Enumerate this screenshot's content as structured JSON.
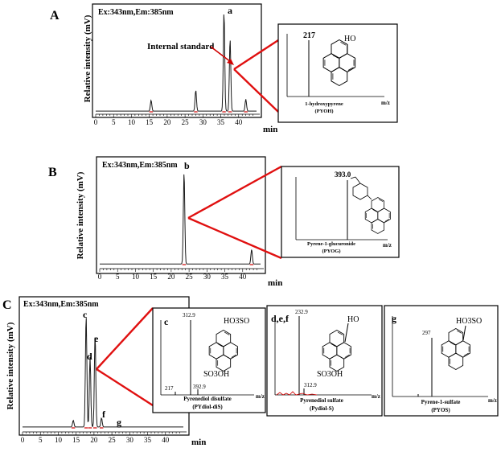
{
  "colors": {
    "trace": "#1a1a1a",
    "highlight": "#d00000",
    "zoom_line": "#e01010"
  },
  "chart_data": [
    {
      "type": "line",
      "panel": "A",
      "annotation": "Ex:343nm,Em:385nm",
      "ylabel": "Relative intensity (mV)",
      "xlabel": "min",
      "xlim": [
        0,
        45
      ],
      "ticks": [
        "0",
        "5",
        "10",
        "15",
        "20",
        "25",
        "30",
        "35",
        "40"
      ],
      "peak_label": "a",
      "callout": "Internal standard",
      "x": [
        0,
        15.5,
        28.0,
        35.9,
        37.6,
        42.0,
        44.0
      ],
      "y": [
        0.03,
        0.11,
        0.21,
        1.0,
        0.73,
        0.12,
        0.03
      ],
      "inset": {
        "mz_label": "217",
        "compound": "1-hydroxypyrene",
        "abbr": "(PYOH)",
        "substituent": "HO",
        "xlabel": "m/z"
      }
    },
    {
      "type": "line",
      "panel": "B",
      "annotation": "Ex:343nm,Em:385nm",
      "ylabel": "Relative intensity (mV)",
      "xlabel": "min",
      "xlim": [
        0,
        45
      ],
      "ticks": [
        "0",
        "5",
        "10",
        "15",
        "20",
        "25",
        "30",
        "35",
        "40"
      ],
      "peak_label": "b",
      "x": [
        0,
        23.6,
        42.5,
        44.0
      ],
      "y": [
        0.02,
        1.0,
        0.16,
        0.05
      ],
      "inset": {
        "mz_label": "393.0",
        "compound": "Pyrene-1-glucuronide",
        "abbr": "(PYOG)",
        "xlabel": "m/z"
      }
    },
    {
      "type": "line",
      "panel": "C",
      "annotation": "Ex:343nm,Em:385nm",
      "ylabel": "Relative intensity (mV)",
      "xlabel": "min",
      "xlim": [
        0,
        45
      ],
      "ticks": [
        "0",
        "5",
        "10",
        "15",
        "20",
        "25",
        "30",
        "35",
        "40"
      ],
      "peak_labels": [
        "c",
        "e",
        "d",
        "f",
        "g"
      ],
      "x": [
        0,
        10.5,
        14.2,
        17.8,
        18.9,
        20.3,
        22.1,
        26.6,
        35.8,
        44.0
      ],
      "y": [
        0.02,
        0.04,
        0.06,
        1.0,
        0.62,
        0.82,
        0.08,
        0.03,
        0.03,
        0.02
      ],
      "insets": [
        {
          "tag": "c",
          "top_mz": "312.9",
          "low_mz": "217",
          "mid_mz": "392.9",
          "top_group": "HO3SO",
          "bottom_group": "SO3OH",
          "compound": "Pyrenediol disulfate",
          "abbr": "(PYdiol-diS)",
          "xlabel": "m/z"
        },
        {
          "tag": "d,e,f",
          "top_mz": "232.9",
          "low_mz": "312.9",
          "top_group": "HO",
          "bottom_group": "SO3OH",
          "compound": "Pyrenediol sulfate",
          "abbr": "(Pydiol-S)",
          "xlabel": "m/z"
        },
        {
          "tag": "g",
          "top_mz": "297",
          "top_group": "HO3SO",
          "compound": "Pyrene-1-sulfate",
          "abbr": "(PYOS)",
          "xlabel": "m/z"
        }
      ]
    }
  ],
  "panel_letters": [
    "A",
    "B",
    "C"
  ]
}
